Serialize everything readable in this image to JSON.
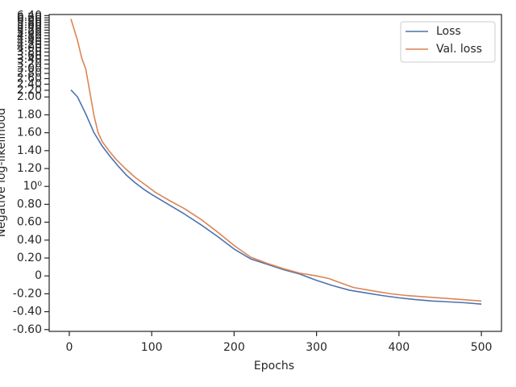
{
  "chart_data": {
    "type": "line",
    "xlabel": "Epochs",
    "ylabel": "Negative log-likelihood",
    "xlim": [
      -24.4,
      524.4
    ],
    "xticks": [
      0,
      100,
      200,
      300,
      400,
      500
    ],
    "ylim": [
      -0.62,
      6.5
    ],
    "yscale": "symlog",
    "linthresh": 2,
    "linscale": 1,
    "base": 10,
    "yticks": [
      {
        "value": -0.6,
        "label": "-0.60"
      },
      {
        "value": -0.4,
        "label": "-0.40"
      },
      {
        "value": -0.2,
        "label": "-0.20"
      },
      0,
      {
        "value": 0.2,
        "label": "0.20"
      },
      {
        "value": 0.4,
        "label": "0.40"
      },
      {
        "value": 0.6,
        "label": "0.60"
      },
      {
        "value": 0.8,
        "label": "0.80"
      },
      {
        "value": 1,
        "label": "10⁰"
      },
      {
        "value": 1.2,
        "label": "1.20"
      },
      {
        "value": 1.4,
        "label": "1.40"
      },
      {
        "value": 1.6,
        "label": "1.60"
      },
      {
        "value": 1.8,
        "label": "1.80"
      },
      {
        "value": 2,
        "label": "2.00"
      },
      {
        "value": 2.2,
        "label": "2.20"
      },
      {
        "value": 2.4,
        "label": "2.40"
      },
      {
        "value": 2.6,
        "label": "2.60"
      },
      {
        "value": 2.8,
        "label": "2.80"
      },
      {
        "value": 3,
        "label": "3.00"
      },
      {
        "value": 3.2,
        "label": "3.20"
      },
      {
        "value": 3.4,
        "label": "3.40"
      },
      {
        "value": 3.6,
        "label": "3.60"
      },
      {
        "value": 3.8,
        "label": "3.80"
      },
      {
        "value": 4,
        "label": "4.00"
      },
      {
        "value": 4.2,
        "label": "4.20"
      },
      {
        "value": 4.4,
        "label": "4.40"
      },
      {
        "value": 4.6,
        "label": "4.60"
      },
      {
        "value": 4.8,
        "label": "4.80"
      },
      {
        "value": 5,
        "label": "5.00"
      },
      {
        "value": 5.2,
        "label": "5.20"
      },
      {
        "value": 5.4,
        "label": "5.40"
      },
      {
        "value": 5.6,
        "label": "5.60"
      },
      {
        "value": 5.8,
        "label": "5.80"
      },
      {
        "value": 6,
        "label": "6.00"
      },
      {
        "value": 6.2,
        "label": "6.20"
      },
      {
        "value": 6.4,
        "label": "6.40"
      }
    ],
    "legend": "upper right",
    "series": [
      {
        "name": "Loss",
        "color": "#4c72b0",
        "x": [
          2,
          10,
          20,
          30,
          40,
          50,
          60,
          70,
          80,
          90,
          100,
          120,
          140,
          160,
          180,
          200,
          220,
          240,
          260,
          280,
          300,
          320,
          340,
          360,
          380,
          400,
          420,
          440,
          460,
          480,
          500
        ],
        "values": [
          2.21,
          2.0,
          1.81,
          1.6,
          1.45,
          1.33,
          1.22,
          1.12,
          1.04,
          0.97,
          0.91,
          0.8,
          0.69,
          0.57,
          0.44,
          0.3,
          0.19,
          0.13,
          0.07,
          0.02,
          -0.05,
          -0.11,
          -0.16,
          -0.19,
          -0.22,
          -0.245,
          -0.265,
          -0.28,
          -0.29,
          -0.3,
          -0.315
        ]
      },
      {
        "name": "Val. loss",
        "color": "#dd8452",
        "x": [
          2,
          10,
          15,
          20,
          26,
          30,
          35,
          40,
          48,
          57,
          68,
          80,
          95,
          105,
          120,
          140,
          160,
          180,
          200,
          220,
          240,
          260,
          280,
          300,
          315,
          330,
          345,
          370,
          390,
          410,
          440,
          470,
          500
        ],
        "values": [
          6.1,
          4.48,
          3.5,
          2.98,
          2.0,
          1.79,
          1.6,
          1.5,
          1.4,
          1.3,
          1.2,
          1.1,
          1.0,
          0.93,
          0.85,
          0.75,
          0.63,
          0.49,
          0.34,
          0.21,
          0.14,
          0.08,
          0.03,
          0.0,
          -0.03,
          -0.08,
          -0.13,
          -0.17,
          -0.2,
          -0.22,
          -0.24,
          -0.26,
          -0.28
        ]
      }
    ]
  }
}
